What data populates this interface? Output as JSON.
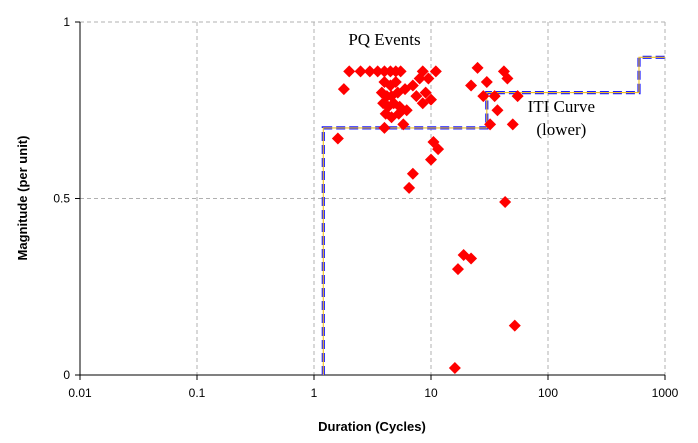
{
  "chart_data": {
    "type": "scatter",
    "title": "",
    "xlabel": "Duration (Cycles)",
    "ylabel": "Magnitude (per unit)",
    "x_scale": "log",
    "xlim": [
      0.01,
      1000
    ],
    "ylim": [
      0,
      1
    ],
    "grid": true,
    "x_ticks": [
      {
        "value": 0.01,
        "label": "0.01"
      },
      {
        "value": 0.1,
        "label": "0.1"
      },
      {
        "value": 1,
        "label": "1"
      },
      {
        "value": 10,
        "label": "10"
      },
      {
        "value": 100,
        "label": "100"
      },
      {
        "value": 1000,
        "label": "1000"
      }
    ],
    "y_ticks": [
      {
        "value": 0,
        "label": "0"
      },
      {
        "value": 0.5,
        "label": "0.5"
      },
      {
        "value": 1,
        "label": "1"
      }
    ],
    "colors": {
      "marker": "#ff0000",
      "curve_outer": "#1a1aff",
      "curve_inner": "#f0c020",
      "grid": "#b0b0b0"
    },
    "series": [
      {
        "type": "scatter",
        "marker": "diamond",
        "points": [
          [
            1.6,
            0.67
          ],
          [
            1.8,
            0.81
          ],
          [
            2.0,
            0.86
          ],
          [
            2.5,
            0.86
          ],
          [
            3.0,
            0.86
          ],
          [
            3.5,
            0.86
          ],
          [
            4.0,
            0.86
          ],
          [
            4.5,
            0.86
          ],
          [
            5.0,
            0.86
          ],
          [
            5.5,
            0.86
          ],
          [
            4.0,
            0.83
          ],
          [
            4.5,
            0.82
          ],
          [
            5.0,
            0.83
          ],
          [
            3.8,
            0.8
          ],
          [
            4.2,
            0.79
          ],
          [
            4.6,
            0.79
          ],
          [
            5.2,
            0.8
          ],
          [
            6.0,
            0.81
          ],
          [
            7.0,
            0.82
          ],
          [
            3.9,
            0.77
          ],
          [
            4.3,
            0.76
          ],
          [
            4.8,
            0.77
          ],
          [
            5.4,
            0.76
          ],
          [
            4.1,
            0.74
          ],
          [
            4.6,
            0.73
          ],
          [
            5.3,
            0.74
          ],
          [
            6.2,
            0.75
          ],
          [
            4.0,
            0.7
          ],
          [
            5.8,
            0.71
          ],
          [
            7.5,
            0.79
          ],
          [
            8.0,
            0.84
          ],
          [
            8.5,
            0.86
          ],
          [
            9.5,
            0.84
          ],
          [
            11.0,
            0.86
          ],
          [
            9.0,
            0.8
          ],
          [
            10.0,
            0.78
          ],
          [
            8.5,
            0.77
          ],
          [
            10.5,
            0.66
          ],
          [
            11.5,
            0.64
          ],
          [
            10.0,
            0.61
          ],
          [
            7.0,
            0.57
          ],
          [
            6.5,
            0.53
          ],
          [
            25.0,
            0.87
          ],
          [
            30.0,
            0.83
          ],
          [
            22.0,
            0.82
          ],
          [
            28.0,
            0.79
          ],
          [
            32.0,
            0.71
          ],
          [
            35.0,
            0.79
          ],
          [
            37.0,
            0.75
          ],
          [
            42.0,
            0.86
          ],
          [
            45.0,
            0.84
          ],
          [
            50.0,
            0.71
          ],
          [
            55.0,
            0.79
          ],
          [
            43.0,
            0.49
          ],
          [
            19.0,
            0.34
          ],
          [
            22.0,
            0.33
          ],
          [
            17.0,
            0.3
          ],
          [
            52.0,
            0.14
          ],
          [
            16.0,
            0.02
          ]
        ]
      },
      {
        "type": "line",
        "style": "dashed",
        "points": [
          [
            1.2,
            0.0
          ],
          [
            1.2,
            0.7
          ],
          [
            30.0,
            0.7
          ],
          [
            30.0,
            0.8
          ],
          [
            600.0,
            0.8
          ],
          [
            600.0,
            0.9
          ],
          [
            1000.0,
            0.9
          ]
        ]
      }
    ],
    "annotations": [
      {
        "text": "PQ Events",
        "x": 4.0,
        "y": 0.935
      },
      {
        "text": "ITI Curve",
        "x": 130.0,
        "y": 0.745
      },
      {
        "text": "(lower)",
        "x": 130.0,
        "y": 0.68
      }
    ]
  }
}
